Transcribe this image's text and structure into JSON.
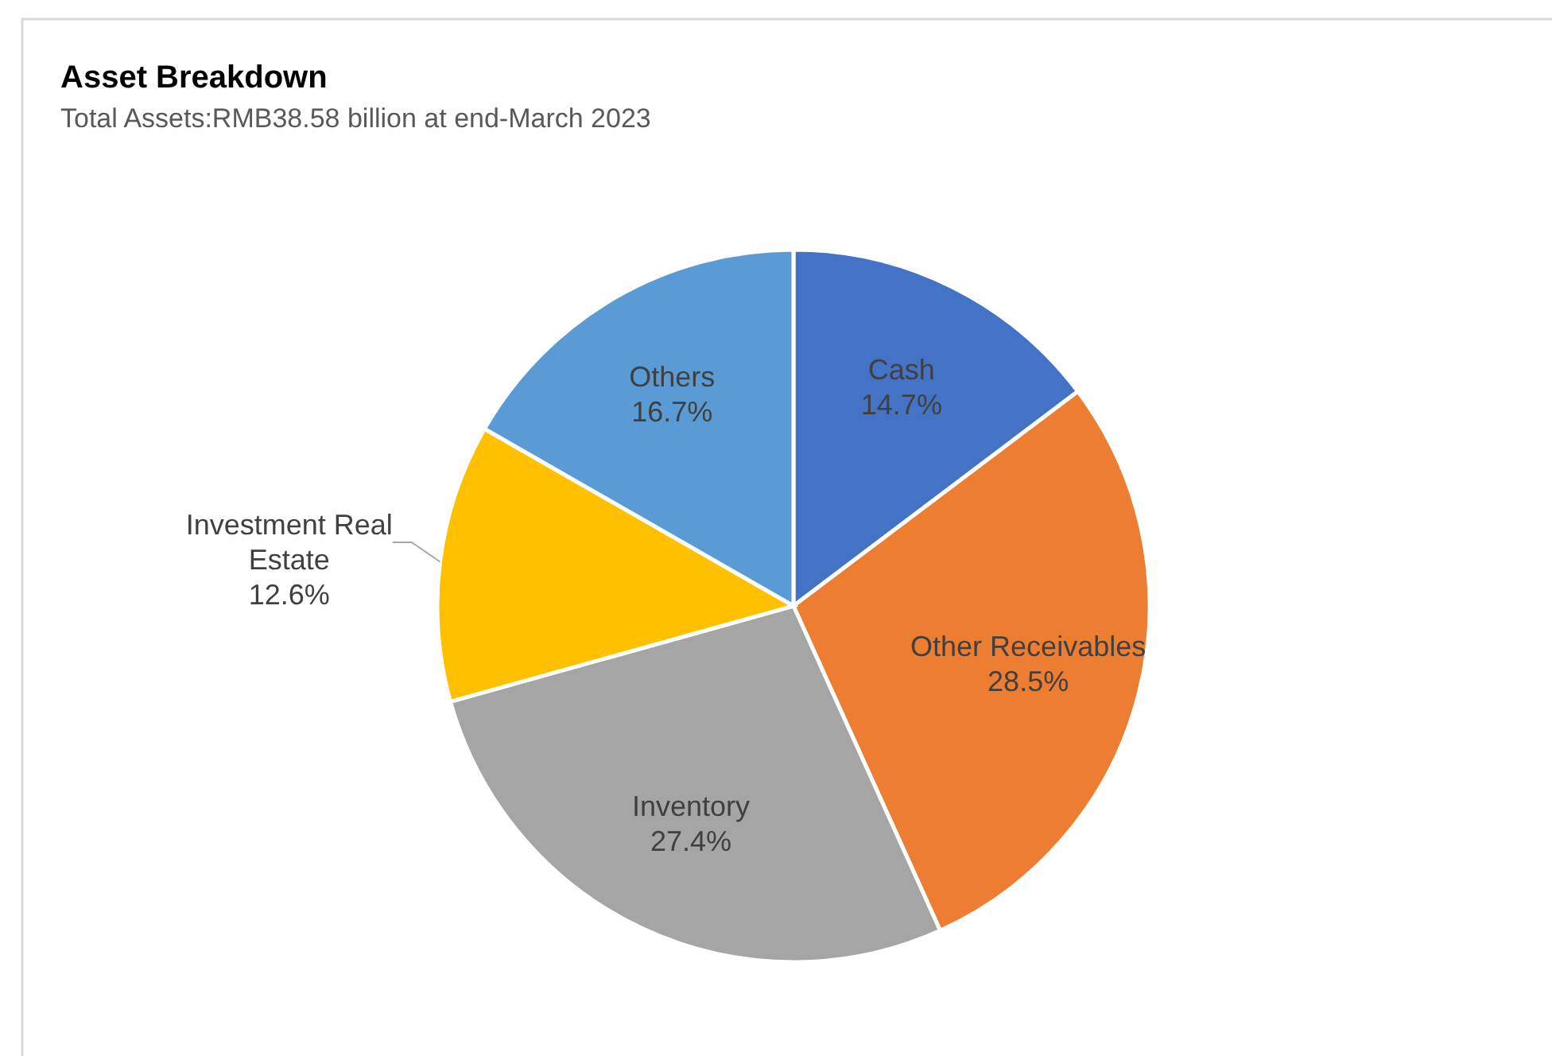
{
  "chart_data": {
    "type": "pie",
    "title": "Asset Breakdown",
    "subtitle": "Total Assets:RMB38.58 billion at end-March 2023",
    "categories": [
      "Cash",
      "Other Receivables",
      "Inventory",
      "Investment Real Estate",
      "Others"
    ],
    "values": [
      14.7,
      28.5,
      27.4,
      12.6,
      16.7
    ],
    "value_labels": [
      "14.7%",
      "28.5%",
      "27.4%",
      "12.6%",
      "16.7%"
    ],
    "colors": [
      "#4472c4",
      "#ed7d31",
      "#a5a5a5",
      "#ffc000",
      "#5b9bd5"
    ]
  }
}
